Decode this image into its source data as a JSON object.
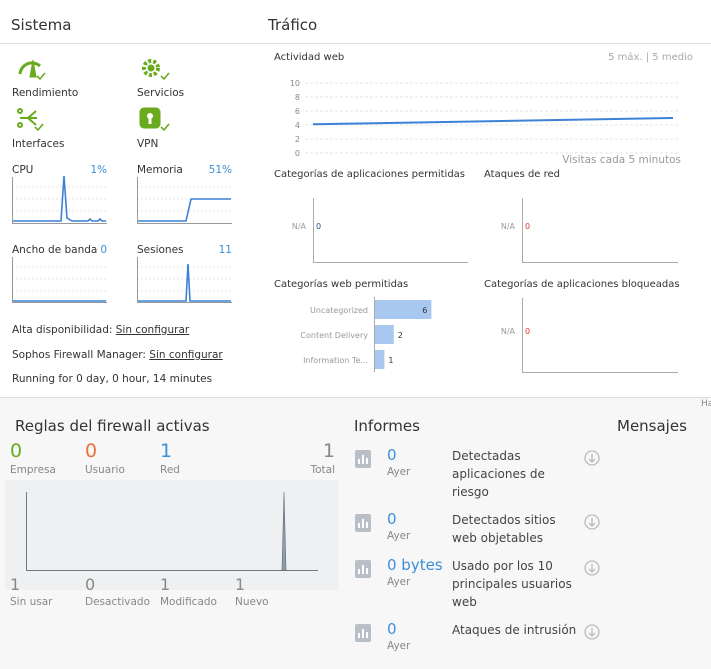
{
  "sistema": {
    "title": "Sistema",
    "icons": [
      "Rendimiento",
      "Servicios",
      "Interfaces",
      "VPN"
    ],
    "meters": [
      {
        "label": "CPU",
        "value": "1%"
      },
      {
        "label": "Memoria",
        "value": "51%"
      },
      {
        "label": "Ancho de banda",
        "value": "0"
      },
      {
        "label": "Sesiones",
        "value": "11"
      }
    ],
    "status": [
      {
        "label": "Alta disponibilidad:",
        "link": "Sin configurar"
      },
      {
        "label": "Sophos Firewall Manager:",
        "link": "Sin configurar"
      }
    ],
    "uptime": "Running for 0 day, 0 hour, 14 minutes"
  },
  "trafico": {
    "title": "Tráfico",
    "web_activity": {
      "title": "Actividad web",
      "summary": "5 máx. | 5 medio",
      "x_label": "Visitas cada 5 minutos",
      "ylim": [
        0,
        10
      ],
      "yticks": [
        0,
        2,
        4,
        6,
        8,
        10
      ],
      "values": [
        4.1,
        5
      ]
    },
    "allowed_app_categories": {
      "title": "Categorías de aplicaciones permitidas",
      "category": "N/A",
      "value": 0
    },
    "network_attacks": {
      "title": "Ataques de red",
      "category": "N/A",
      "value": 0
    },
    "allowed_web_categories": {
      "title": "Categorías web permitidas",
      "categories": [
        "Uncategorized",
        "Content Delivery",
        "Information Te..."
      ],
      "values": [
        6,
        2,
        1
      ]
    },
    "blocked_app_categories": {
      "title": "Categorías de aplicaciones bloqueadas",
      "category": "N/A",
      "value": 0
    }
  },
  "hidden_tab": "Ha",
  "firewall_rules": {
    "title": "Reglas del firewall activas",
    "top": [
      {
        "value": 0,
        "label": "Empresa"
      },
      {
        "value": 0,
        "label": "Usuario"
      },
      {
        "value": 1,
        "label": "Red"
      },
      {
        "value": 1,
        "label": "Total"
      }
    ],
    "bottom": [
      {
        "value": 1,
        "label": "Sin usar"
      },
      {
        "value": 0,
        "label": "Desactivado"
      },
      {
        "value": 1,
        "label": "Modificado"
      },
      {
        "value": 1,
        "label": "Nuevo"
      }
    ]
  },
  "informes": {
    "title": "Informes",
    "items": [
      {
        "value": "0",
        "period": "Ayer",
        "text": "Detectadas aplicaciones de riesgo"
      },
      {
        "value": "0",
        "period": "Ayer",
        "text": "Detectados sitios web objetables"
      },
      {
        "value": "0 bytes",
        "period": "Ayer",
        "text": "Usado por los 10 principales usuarios web"
      },
      {
        "value": "0",
        "period": "Ayer",
        "text": "Ataques de intrusión"
      }
    ]
  },
  "mensajes": {
    "title": "Mensajes"
  }
}
